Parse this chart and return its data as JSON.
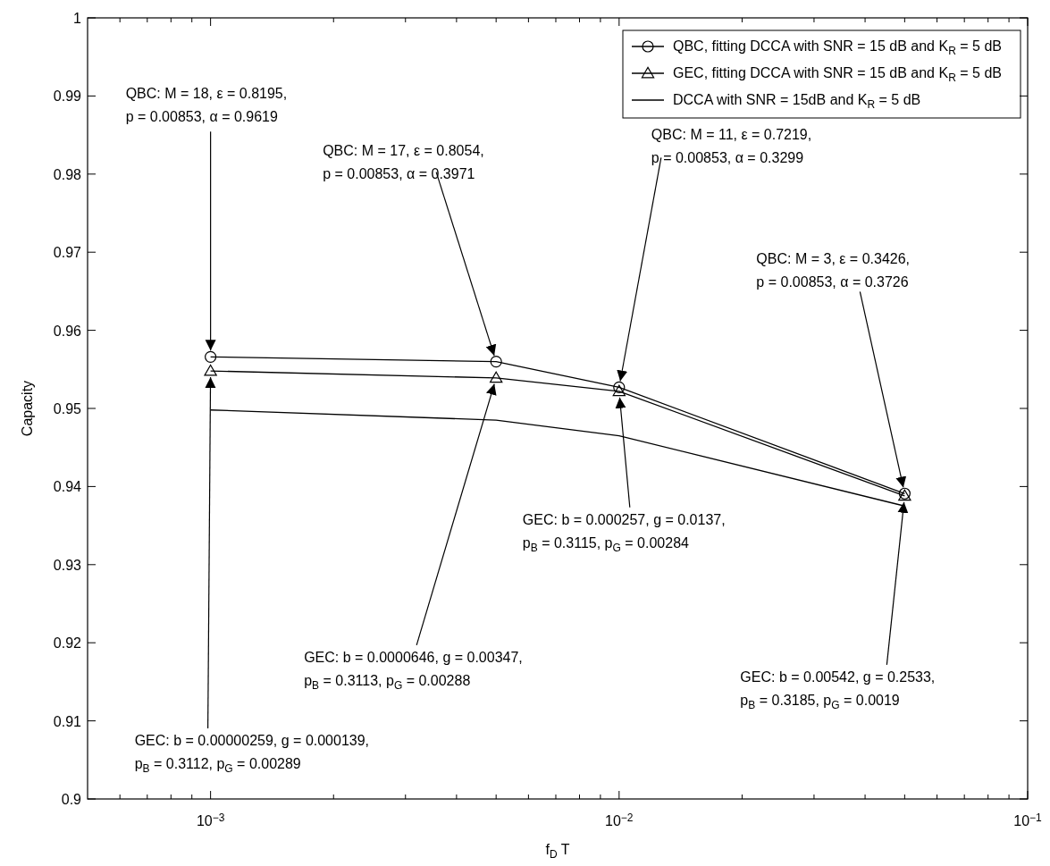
{
  "chart_data": {
    "type": "line",
    "xlabel": "f$_{D}$ T",
    "ylabel": "Capacity",
    "x": [
      0.001,
      0.005,
      0.01,
      0.05
    ],
    "series": [
      {
        "name": "QBC, fitting DCCA with SNR = 15 dB and K$_{R}$ = 5 dB",
        "color": "#000000",
        "marker": "circle",
        "values": [
          0.9566,
          0.956,
          0.9527,
          0.9391
        ]
      },
      {
        "name": "GEC, fitting DCCA with SNR = 15 dB and K$_{R}$ = 5 dB",
        "color": "#000000",
        "marker": "triangle",
        "values": [
          0.9548,
          0.9539,
          0.9522,
          0.9388
        ]
      },
      {
        "name": "DCCA with SNR = 15dB and K$_{R}$ = 5 dB",
        "color": "#000000",
        "marker": "none",
        "values": [
          0.9498,
          0.9485,
          0.9465,
          0.9375
        ]
      }
    ],
    "log": "x",
    "xlim": [
      0.0005,
      0.1
    ],
    "ylim": [
      0.9,
      1
    ],
    "xticks": [
      {
        "value": 0.0006,
        "label": null
      },
      {
        "value": 0.0007,
        "label": null
      },
      {
        "value": 0.0008,
        "label": null
      },
      {
        "value": 0.0009,
        "label": null
      },
      {
        "value": 0.001,
        "label": "10$^{−3}$"
      },
      {
        "value": 0.002,
        "label": null
      },
      {
        "value": 0.003,
        "label": null
      },
      {
        "value": 0.004,
        "label": null
      },
      {
        "value": 0.005,
        "label": null
      },
      {
        "value": 0.006,
        "label": null
      },
      {
        "value": 0.007,
        "label": null
      },
      {
        "value": 0.008,
        "label": null
      },
      {
        "value": 0.009,
        "label": null
      },
      {
        "value": 0.01,
        "label": "10$^{−2}$"
      },
      {
        "value": 0.02,
        "label": null
      },
      {
        "value": 0.03,
        "label": null
      },
      {
        "value": 0.04,
        "label": null
      },
      {
        "value": 0.05,
        "label": null
      },
      {
        "value": 0.06,
        "label": null
      },
      {
        "value": 0.07,
        "label": null
      },
      {
        "value": 0.08,
        "label": null
      },
      {
        "value": 0.09,
        "label": null
      },
      {
        "value": 0.1,
        "label": "10$^{−1}$"
      }
    ],
    "yticks": [
      0.9,
      0.91,
      0.92,
      0.93,
      0.94,
      0.95,
      0.96,
      0.97,
      0.98,
      0.99,
      1
    ],
    "grid": false,
    "legend": "top right",
    "annotations": [
      {
        "text": "QBC: M = 18, ε = 0.8195,\np = 0.00853, α = 0.9619",
        "x": 0.001,
        "y": 0.9566
      },
      {
        "text": "QBC: M = 17, ε = 0.8054,\np = 0.00853, α = 0.3971",
        "x": 0.005,
        "y": 0.956
      },
      {
        "text": "QBC: M = 11, ε = 0.7219,\np = 0.00853, α = 0.3299",
        "x": 0.01,
        "y": 0.9527
      },
      {
        "text": "QBC: M = 3, ε = 0.3426,\np = 0.00853, α = 0.3726",
        "x": 0.05,
        "y": 0.9391
      },
      {
        "text": "GEC: b = 0.00000259, g = 0.000139,\np$_{B}$ = 0.3112, p$_{G}$ = 0.00289",
        "x": 0.001,
        "y": 0.9548
      },
      {
        "text": "GEC: b = 0.0000646, g = 0.00347,\np$_{B}$ = 0.3113, p$_{G}$ = 0.00288",
        "x": 0.005,
        "y": 0.9539
      },
      {
        "text": "GEC: b = 0.000257, g = 0.0137,\np$_{B}$ = 0.3115, p$_{G}$ = 0.00284",
        "x": 0.01,
        "y": 0.9522
      },
      {
        "text": "GEC: b = 0.00542, g = 0.2533,\np$_{B}$ = 0.3185, p$_{G}$ = 0.0019",
        "x": 0.05,
        "y": 0.9388
      }
    ]
  }
}
